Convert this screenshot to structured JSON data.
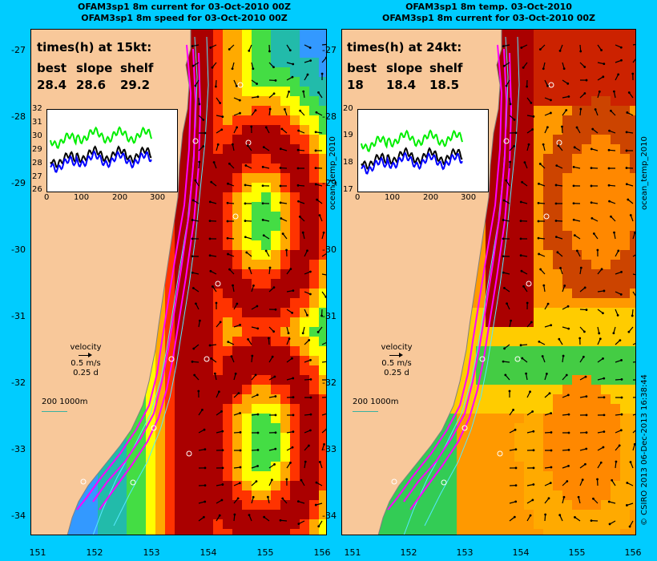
{
  "left": {
    "title_line1": "OFAM3sp1 8m current for 03-Oct-2010 00Z",
    "title_line2": "OFAM3sp1 8m speed for 03-Oct-2010 00Z",
    "times_title": "times(h) at 15kt:",
    "headers": [
      "best",
      "slope",
      "shelf"
    ],
    "values": [
      "28.4",
      "28.6",
      "29.2"
    ],
    "inset_yticks": [
      "32",
      "31",
      "30",
      "29",
      "28",
      "27",
      "26"
    ],
    "inset_xticks": [
      "0",
      "100",
      "200",
      "300"
    ]
  },
  "right": {
    "title_line1": "OFAM3sp1 8m temp. 03-Oct-2010",
    "title_line2": "OFAM3sp1 8m current for 03-Oct-2010 00Z",
    "times_title": "times(h) at 24kt:",
    "headers": [
      "best",
      "slope",
      "shelf"
    ],
    "values": [
      "18",
      "18.4",
      "18.5"
    ],
    "inset_yticks": [
      "20",
      "19",
      "18",
      "17"
    ],
    "inset_xticks": [
      "0",
      "100",
      "200",
      "300"
    ]
  },
  "velocity_legend": [
    "velocity",
    "0.5 m/s",
    "0.25 d"
  ],
  "scale_legend": "200  1000m",
  "lat_labels": [
    "-27",
    "-28",
    "-29",
    "-30",
    "-31",
    "-32",
    "-33",
    "-34"
  ],
  "lon_labels": [
    "151",
    "152",
    "153",
    "154",
    "155",
    "156"
  ],
  "side_label_product": "ocean_temp_2010",
  "side_label_credit": "© CSIRO 2013   06-Dec-2013 16:38:44",
  "colors": {
    "background": "#00ccff",
    "land": "#f8c89a",
    "track": "#ff00ff",
    "series_best": "#000000",
    "series_slope": "#0000ff",
    "series_shelf": "#00ee00"
  }
}
